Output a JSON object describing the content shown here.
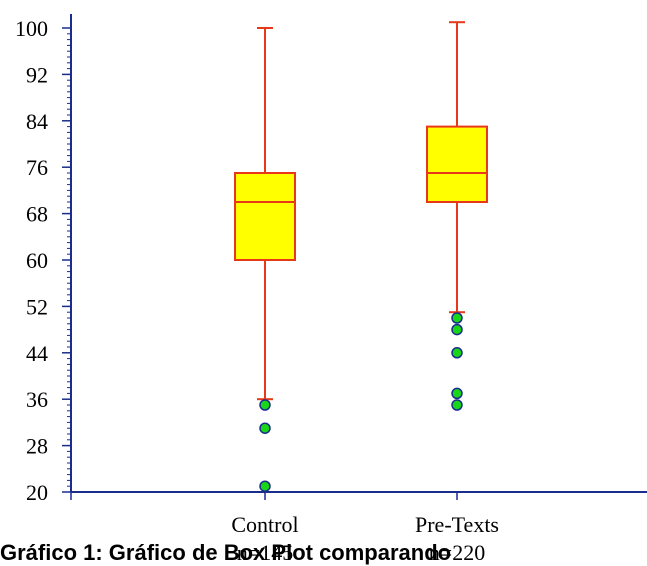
{
  "chart_data": {
    "type": "box",
    "y_ticks": [
      20,
      28,
      36,
      44,
      52,
      60,
      68,
      76,
      84,
      92,
      100
    ],
    "ylim": [
      20,
      100
    ],
    "categories": [
      "Control",
      "Pre-Texts"
    ],
    "n_labels": [
      "n=145",
      "n=220"
    ],
    "boxes": [
      {
        "label": "Control",
        "n": "n=145",
        "min": 36,
        "q1": 60,
        "median": 70,
        "q3": 75,
        "max": 100,
        "outliers": [
          35,
          31,
          21
        ]
      },
      {
        "label": "Pre-Texts",
        "n": "n=220",
        "min": 51,
        "q1": 70,
        "median": 75,
        "q3": 83,
        "max": 101,
        "outliers": [
          50,
          48,
          44,
          37,
          35
        ]
      }
    ],
    "grid": false
  },
  "caption": "Gráfico 1: Gráfico de Box Plot comparando",
  "colors": {
    "box_fill": "#ffff00",
    "box_stroke": "#e8381a",
    "outlier_fill": "#19d619",
    "outlier_stroke": "#1a2d8c",
    "axis": "#1a2d8c"
  }
}
